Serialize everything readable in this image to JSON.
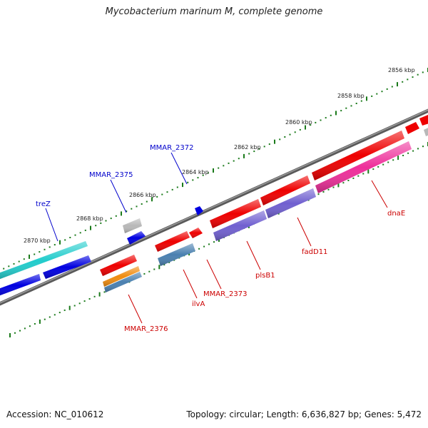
{
  "title": "Mycobacterium marinum M, complete genome",
  "footer": {
    "accession": "Accession: NC_010612",
    "topology": "Topology: circular; Length: 6,636,827 bp; Genes: 5,472"
  },
  "colors": {
    "backbone": "#7a7a7a",
    "tick": "#1a7a1a",
    "label_blue": "#0000cc",
    "label_red": "#cc0000",
    "cds_red": "#ee0000",
    "cds_blue": "#0000e0",
    "cyan": "#22cccc",
    "grey": "#b8b8b8",
    "purple": "#7060d0",
    "steel": "#4a80b0",
    "magenta": "#ee2f9a",
    "orange": "#f08c10"
  },
  "ticks": [
    "2856 kbp",
    "2858 kbp",
    "2860 kbp",
    "2862 kbp",
    "2864 kbp",
    "2866 kbp",
    "2868 kbp",
    "2870 kbp"
  ],
  "gene_labels": [
    {
      "name": "treZ",
      "color": "blue"
    },
    {
      "name": "MMAR_2375",
      "color": "blue"
    },
    {
      "name": "MMAR_2372",
      "color": "blue"
    },
    {
      "name": "MMAR_2376",
      "color": "red"
    },
    {
      "name": "ilvA",
      "color": "red"
    },
    {
      "name": "MMAR_2373",
      "color": "red"
    },
    {
      "name": "plsB1",
      "color": "red"
    },
    {
      "name": "fadD11",
      "color": "red"
    },
    {
      "name": "dnaE",
      "color": "red"
    }
  ]
}
